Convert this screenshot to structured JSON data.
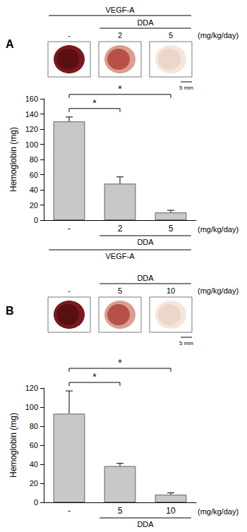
{
  "chart_data": [
    {
      "type": "bar",
      "title": "A",
      "categories": [
        "-",
        "2",
        "5"
      ],
      "values": [
        130,
        48,
        10
      ],
      "errors": [
        6,
        9,
        3
      ],
      "color": "#c8c8c8",
      "ylim": [
        0,
        160
      ],
      "yticks": [
        0,
        20,
        40,
        60,
        80,
        100,
        120,
        140,
        160
      ],
      "y_label": "Hemoglobin (mg)",
      "grid": false,
      "unit": "(mg/kg/day)",
      "scale_bar": "5 mm",
      "header": [
        {
          "label": "VEGF-A",
          "categories": [
            "-",
            "2",
            "5"
          ]
        },
        {
          "label": "DDA",
          "categories": [
            "2",
            "5"
          ]
        }
      ],
      "footer": [
        {
          "label": "DDA",
          "categories": [
            "2",
            "5"
          ]
        },
        {
          "label": "VEGF-A",
          "categories": [
            "-",
            "2",
            "5"
          ]
        }
      ],
      "significance": [
        {
          "from": "-",
          "to": "2",
          "label": "*"
        },
        {
          "from": "-",
          "to": "5",
          "label": "*"
        }
      ]
    },
    {
      "type": "bar",
      "title": "B",
      "categories": [
        "-",
        "5",
        "10"
      ],
      "values": [
        93,
        38,
        8
      ],
      "errors": [
        24,
        3,
        2
      ],
      "color": "#c8c8c8",
      "ylim": [
        0,
        120
      ],
      "yticks": [
        0,
        20,
        40,
        60,
        80,
        100,
        120
      ],
      "y_label": "Hemoglobin (mg)",
      "grid": false,
      "unit": "(mg/kg/day)",
      "scale_bar": "5 mm",
      "header": [
        {
          "label": "DDA",
          "categories": [
            "5",
            "10"
          ]
        }
      ],
      "footer": [
        {
          "label": "DDA",
          "categories": [
            "5",
            "10"
          ]
        }
      ],
      "significance": [
        {
          "from": "-",
          "to": "5",
          "label": "*"
        },
        {
          "from": "-",
          "to": "10",
          "label": "*"
        }
      ]
    }
  ]
}
